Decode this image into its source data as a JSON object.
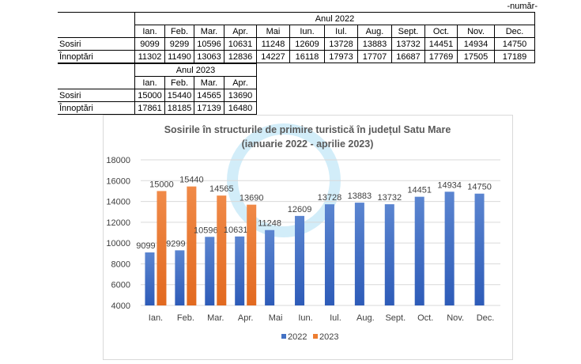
{
  "unit_label": "-număr-",
  "table_2022": {
    "header": "Anul 2022",
    "months": [
      "Ian.",
      "Feb.",
      "Mar.",
      "Apr.",
      "Mai",
      "Iun.",
      "Iul.",
      "Aug.",
      "Sept.",
      "Oct.",
      "Nov.",
      "Dec."
    ],
    "rows": [
      {
        "label": "Sosiri",
        "values": [
          "9099",
          "9299",
          "10596",
          "10631",
          "11248",
          "12609",
          "13728",
          "13883",
          "13732",
          "14451",
          "14934",
          "14750"
        ]
      },
      {
        "label": "Înnoptări",
        "values": [
          "11302",
          "11490",
          "13063",
          "12836",
          "14227",
          "16118",
          "17973",
          "17707",
          "16687",
          "17769",
          "17505",
          "17189"
        ]
      }
    ]
  },
  "table_2023": {
    "header": "Anul 2023",
    "months": [
      "Ian.",
      "Feb.",
      "Mar.",
      "Apr."
    ],
    "rows": [
      {
        "label": "Sosiri",
        "values": [
          "15000",
          "15440",
          "14565",
          "13690"
        ]
      },
      {
        "label": "Înnoptări",
        "values": [
          "17861",
          "18185",
          "17139",
          "16480"
        ]
      }
    ]
  },
  "chart_data": {
    "type": "bar",
    "title": "Sosirile în structurile de primire turistică în județul Satu Mare",
    "subtitle": "(ianuarie 2022 - aprilie 2023)",
    "categories": [
      "Ian.",
      "Feb.",
      "Mar.",
      "Apr.",
      "Mai",
      "Iun.",
      "Iul.",
      "Aug.",
      "Sept.",
      "Oct.",
      "Nov.",
      "Dec."
    ],
    "series": [
      {
        "name": "2022",
        "color": "#4472c4",
        "values": [
          9099,
          9299,
          10596,
          10631,
          11248,
          12609,
          13728,
          13883,
          13732,
          14451,
          14934,
          14750
        ]
      },
      {
        "name": "2023",
        "color": "#ed7d31",
        "values": [
          15000,
          15440,
          14565,
          13690,
          null,
          null,
          null,
          null,
          null,
          null,
          null,
          null
        ]
      }
    ],
    "ylim": [
      4000,
      18000
    ],
    "yticks": [
      4000,
      6000,
      8000,
      10000,
      12000,
      14000,
      16000,
      18000
    ],
    "grid": true,
    "data_labels": true,
    "legend": "bottom"
  }
}
